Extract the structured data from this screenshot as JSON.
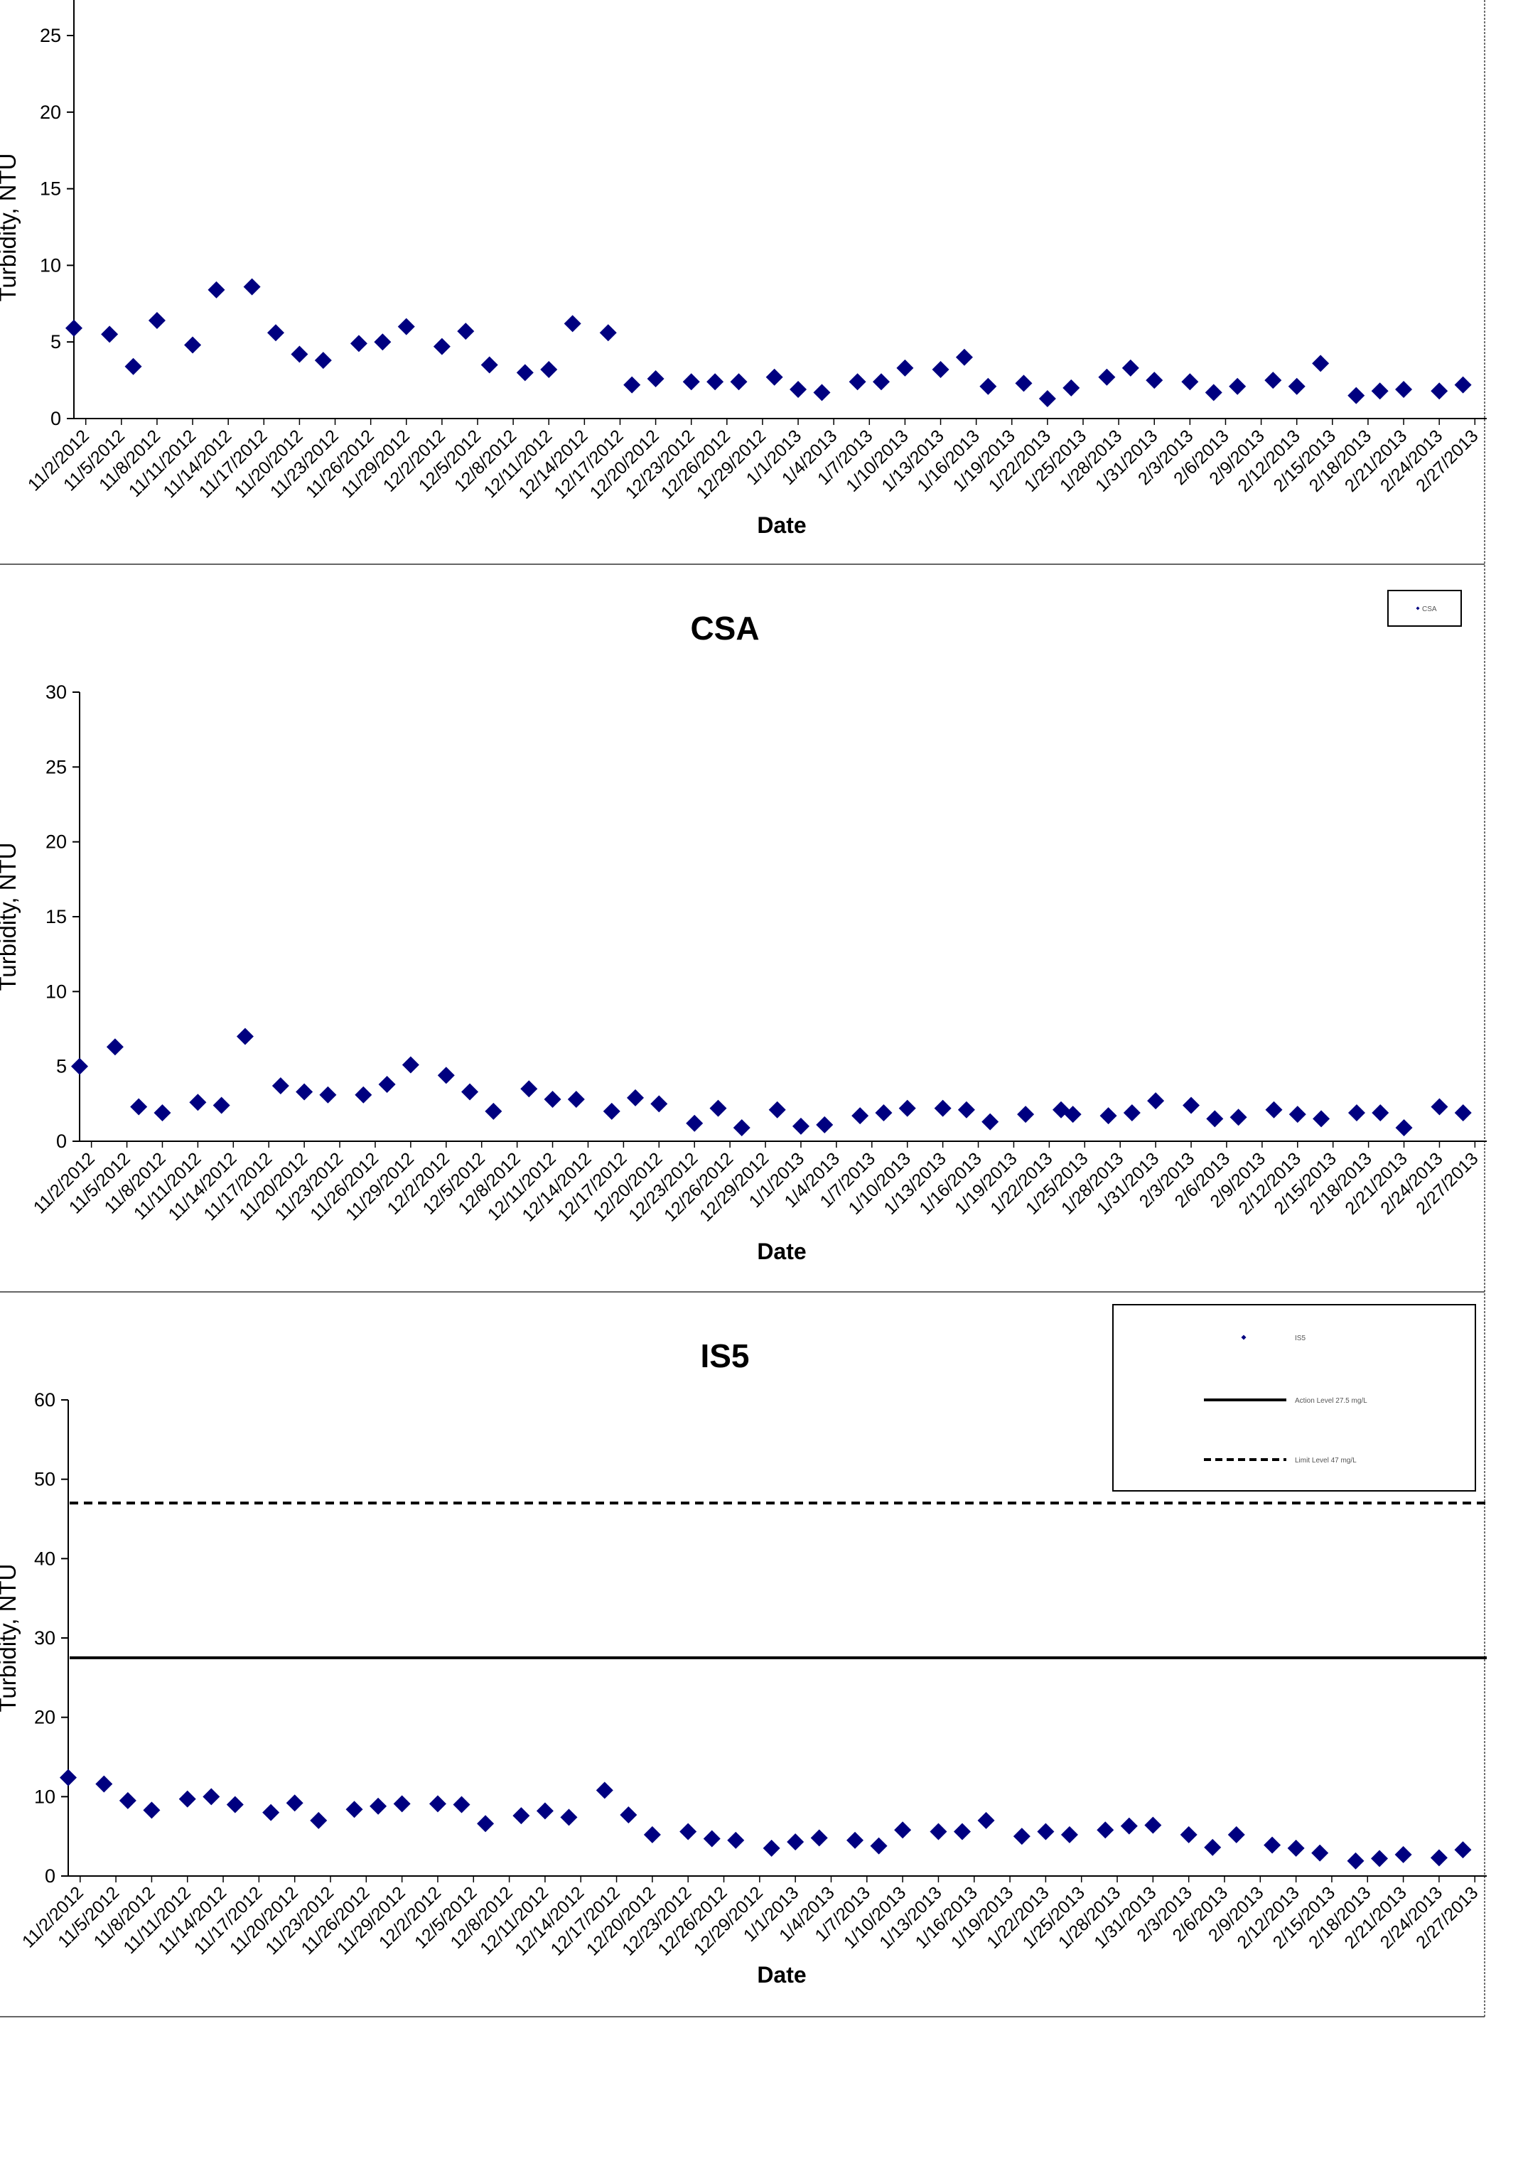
{
  "chart_data": [
    {
      "type": "scatter",
      "title": "",
      "xlabel": "Date",
      "ylabel": "Turbidity, NTU",
      "ylim": [
        0,
        25
      ],
      "yticks": [
        0,
        5,
        10,
        15,
        20,
        25
      ],
      "xlim": [
        "11/1/2012",
        "2/28/2013"
      ],
      "xtick_labels": [
        "11/2/2012",
        "11/5/2012",
        "11/8/2012",
        "11/11/2012",
        "11/14/2012",
        "11/17/2012",
        "11/20/2012",
        "11/23/2012",
        "11/26/2012",
        "11/29/2012",
        "12/2/2012",
        "12/5/2012",
        "12/8/2012",
        "12/11/2012",
        "12/14/2012",
        "12/17/2012",
        "12/20/2012",
        "12/23/2012",
        "12/26/2012",
        "12/29/2012",
        "1/1/2013",
        "1/4/2013",
        "1/7/2013",
        "1/10/2013",
        "1/13/2013",
        "1/16/2013",
        "1/19/2013",
        "1/22/2013",
        "1/25/2013",
        "1/28/2013",
        "1/31/2013",
        "2/3/2013",
        "2/6/2013",
        "2/9/2013",
        "2/12/2013",
        "2/15/2013",
        "2/18/2013",
        "2/21/2013",
        "2/24/2013",
        "2/27/2013"
      ],
      "marker_color": "#000080",
      "series": [
        {
          "name": "",
          "points": [
            [
              "11/1/2012",
              5.9
            ],
            [
              "11/4/2012",
              5.5
            ],
            [
              "11/6/2012",
              3.4
            ],
            [
              "11/8/2012",
              6.4
            ],
            [
              "11/11/2012",
              4.8
            ],
            [
              "11/13/2012",
              8.4
            ],
            [
              "11/16/2012",
              8.6
            ],
            [
              "11/18/2012",
              5.6
            ],
            [
              "11/20/2012",
              4.2
            ],
            [
              "11/22/2012",
              3.8
            ],
            [
              "11/25/2012",
              4.9
            ],
            [
              "11/27/2012",
              5.0
            ],
            [
              "11/29/2012",
              6.0
            ],
            [
              "12/2/2012",
              4.7
            ],
            [
              "12/4/2012",
              5.7
            ],
            [
              "12/6/2012",
              3.5
            ],
            [
              "12/9/2012",
              3.0
            ],
            [
              "12/11/2012",
              3.2
            ],
            [
              "12/13/2012",
              6.2
            ],
            [
              "12/16/2012",
              5.6
            ],
            [
              "12/18/2012",
              2.2
            ],
            [
              "12/20/2012",
              2.6
            ],
            [
              "12/23/2012",
              2.4
            ],
            [
              "12/25/2012",
              2.4
            ],
            [
              "12/27/2012",
              2.4
            ],
            [
              "12/30/2012",
              2.7
            ],
            [
              "1/1/2013",
              1.9
            ],
            [
              "1/3/2013",
              1.7
            ],
            [
              "1/6/2013",
              2.4
            ],
            [
              "1/8/2013",
              2.4
            ],
            [
              "1/10/2013",
              3.3
            ],
            [
              "1/13/2013",
              3.2
            ],
            [
              "1/15/2013",
              4.0
            ],
            [
              "1/17/2013",
              2.1
            ],
            [
              "1/20/2013",
              2.3
            ],
            [
              "1/22/2013",
              1.3
            ],
            [
              "1/24/2013",
              2.0
            ],
            [
              "1/27/2013",
              2.7
            ],
            [
              "1/29/2013",
              3.3
            ],
            [
              "1/31/2013",
              2.5
            ],
            [
              "2/3/2013",
              2.4
            ],
            [
              "2/5/2013",
              1.7
            ],
            [
              "2/7/2013",
              2.1
            ],
            [
              "2/10/2013",
              2.5
            ],
            [
              "2/12/2013",
              2.1
            ],
            [
              "2/14/2013",
              3.6
            ],
            [
              "2/17/2013",
              1.5
            ],
            [
              "2/19/2013",
              1.8
            ],
            [
              "2/21/2013",
              1.9
            ],
            [
              "2/24/2013",
              1.8
            ],
            [
              "2/26/2013",
              2.2
            ]
          ]
        }
      ],
      "reference_lines": [],
      "legend": null
    },
    {
      "type": "scatter",
      "title": "CSA",
      "xlabel": "Date",
      "ylabel": "Turbidity, NTU",
      "ylim": [
        0,
        30
      ],
      "yticks": [
        0,
        5,
        10,
        15,
        20,
        25,
        30
      ],
      "xlim": [
        "11/1/2012",
        "2/28/2013"
      ],
      "xtick_labels": [
        "11/2/2012",
        "11/5/2012",
        "11/8/2012",
        "11/11/2012",
        "11/14/2012",
        "11/17/2012",
        "11/20/2012",
        "11/23/2012",
        "11/26/2012",
        "11/29/2012",
        "12/2/2012",
        "12/5/2012",
        "12/8/2012",
        "12/11/2012",
        "12/14/2012",
        "12/17/2012",
        "12/20/2012",
        "12/23/2012",
        "12/26/2012",
        "12/29/2012",
        "1/1/2013",
        "1/4/2013",
        "1/7/2013",
        "1/10/2013",
        "1/13/2013",
        "1/16/2013",
        "1/19/2013",
        "1/22/2013",
        "1/25/2013",
        "1/28/2013",
        "1/31/2013",
        "2/3/2013",
        "2/6/2013",
        "2/9/2013",
        "2/12/2013",
        "2/15/2013",
        "2/18/2013",
        "2/21/2013",
        "2/24/2013",
        "2/27/2013"
      ],
      "marker_color": "#000080",
      "series": [
        {
          "name": "CSA",
          "points": [
            [
              "11/1/2012",
              5.0
            ],
            [
              "11/4/2012",
              6.3
            ],
            [
              "11/6/2012",
              2.3
            ],
            [
              "11/8/2012",
              1.9
            ],
            [
              "11/11/2012",
              2.6
            ],
            [
              "11/13/2012",
              2.4
            ],
            [
              "11/15/2012",
              7.0
            ],
            [
              "11/18/2012",
              3.7
            ],
            [
              "11/20/2012",
              3.3
            ],
            [
              "11/22/2012",
              3.1
            ],
            [
              "11/25/2012",
              3.1
            ],
            [
              "11/27/2012",
              3.8
            ],
            [
              "11/29/2012",
              5.1
            ],
            [
              "12/2/2012",
              4.4
            ],
            [
              "12/4/2012",
              3.3
            ],
            [
              "12/6/2012",
              2.0
            ],
            [
              "12/9/2012",
              3.5
            ],
            [
              "12/11/2012",
              2.8
            ],
            [
              "12/13/2012",
              2.8
            ],
            [
              "12/16/2012",
              2.0
            ],
            [
              "12/18/2012",
              2.9
            ],
            [
              "12/20/2012",
              2.5
            ],
            [
              "12/23/2012",
              1.2
            ],
            [
              "12/25/2012",
              2.2
            ],
            [
              "12/27/2012",
              0.9
            ],
            [
              "12/30/2012",
              2.1
            ],
            [
              "1/1/2013",
              1.0
            ],
            [
              "1/3/2013",
              1.1
            ],
            [
              "1/6/2013",
              1.7
            ],
            [
              "1/8/2013",
              1.9
            ],
            [
              "1/10/2013",
              2.2
            ],
            [
              "1/13/2013",
              2.2
            ],
            [
              "1/15/2013",
              2.1
            ],
            [
              "1/17/2013",
              1.3
            ],
            [
              "1/20/2013",
              1.8
            ],
            [
              "1/23/2013",
              2.1
            ],
            [
              "1/24/2013",
              1.8
            ],
            [
              "1/27/2013",
              1.7
            ],
            [
              "1/29/2013",
              1.9
            ],
            [
              "1/31/2013",
              2.7
            ],
            [
              "2/3/2013",
              2.4
            ],
            [
              "2/5/2013",
              1.5
            ],
            [
              "2/7/2013",
              1.6
            ],
            [
              "2/10/2013",
              2.1
            ],
            [
              "2/12/2013",
              1.8
            ],
            [
              "2/14/2013",
              1.5
            ],
            [
              "2/17/2013",
              1.9
            ],
            [
              "2/19/2013",
              1.9
            ],
            [
              "2/21/2013",
              0.9
            ],
            [
              "2/24/2013",
              2.3
            ],
            [
              "2/26/2013",
              1.9
            ]
          ]
        }
      ],
      "reference_lines": [],
      "legend": {
        "placement": "top-right",
        "entries": [
          "CSA"
        ]
      }
    },
    {
      "type": "scatter",
      "title": "IS5",
      "xlabel": "Date",
      "ylabel": "Turbidity, NTU",
      "ylim": [
        0,
        60
      ],
      "yticks": [
        0,
        10,
        20,
        30,
        40,
        50,
        60
      ],
      "xlim": [
        "11/1/2012",
        "2/28/2013"
      ],
      "xtick_labels": [
        "11/2/2012",
        "11/5/2012",
        "11/8/2012",
        "11/11/2012",
        "11/14/2012",
        "11/17/2012",
        "11/20/2012",
        "11/23/2012",
        "11/26/2012",
        "11/29/2012",
        "12/2/2012",
        "12/5/2012",
        "12/8/2012",
        "12/11/2012",
        "12/14/2012",
        "12/17/2012",
        "12/20/2012",
        "12/23/2012",
        "12/26/2012",
        "12/29/2012",
        "1/1/2013",
        "1/4/2013",
        "1/7/2013",
        "1/10/2013",
        "1/13/2013",
        "1/16/2013",
        "1/19/2013",
        "1/22/2013",
        "1/25/2013",
        "1/28/2013",
        "1/31/2013",
        "2/3/2013",
        "2/6/2013",
        "2/9/2013",
        "2/12/2013",
        "2/15/2013",
        "2/18/2013",
        "2/21/2013",
        "2/24/2013",
        "2/27/2013"
      ],
      "marker_color": "#000080",
      "series": [
        {
          "name": "IS5",
          "points": [
            [
              "11/1/2012",
              12.4
            ],
            [
              "11/4/2012",
              11.6
            ],
            [
              "11/6/2012",
              9.5
            ],
            [
              "11/8/2012",
              8.3
            ],
            [
              "11/11/2012",
              9.7
            ],
            [
              "11/13/2012",
              10.0
            ],
            [
              "11/15/2012",
              9.0
            ],
            [
              "11/18/2012",
              8.0
            ],
            [
              "11/20/2012",
              9.2
            ],
            [
              "11/22/2012",
              7.0
            ],
            [
              "11/25/2012",
              8.4
            ],
            [
              "11/27/2012",
              8.8
            ],
            [
              "11/29/2012",
              9.1
            ],
            [
              "12/2/2012",
              9.1
            ],
            [
              "12/4/2012",
              9.0
            ],
            [
              "12/6/2012",
              6.6
            ],
            [
              "12/9/2012",
              7.6
            ],
            [
              "12/11/2012",
              8.2
            ],
            [
              "12/13/2012",
              7.4
            ],
            [
              "12/16/2012",
              10.8
            ],
            [
              "12/18/2012",
              7.7
            ],
            [
              "12/20/2012",
              5.2
            ],
            [
              "12/23/2012",
              5.6
            ],
            [
              "12/25/2012",
              4.7
            ],
            [
              "12/27/2012",
              4.5
            ],
            [
              "12/30/2012",
              3.5
            ],
            [
              "1/1/2013",
              4.3
            ],
            [
              "1/3/2013",
              4.8
            ],
            [
              "1/6/2013",
              4.5
            ],
            [
              "1/8/2013",
              3.8
            ],
            [
              "1/10/2013",
              5.8
            ],
            [
              "1/13/2013",
              5.6
            ],
            [
              "1/15/2013",
              5.6
            ],
            [
              "1/17/2013",
              7.0
            ],
            [
              "1/20/2013",
              5.0
            ],
            [
              "1/22/2013",
              5.6
            ],
            [
              "1/24/2013",
              5.2
            ],
            [
              "1/27/2013",
              5.8
            ],
            [
              "1/29/2013",
              6.3
            ],
            [
              "1/31/2013",
              6.4
            ],
            [
              "2/3/2013",
              5.2
            ],
            [
              "2/5/2013",
              3.6
            ],
            [
              "2/7/2013",
              5.2
            ],
            [
              "2/10/2013",
              3.9
            ],
            [
              "2/12/2013",
              3.5
            ],
            [
              "2/14/2013",
              2.9
            ],
            [
              "2/17/2013",
              1.9
            ],
            [
              "2/19/2013",
              2.2
            ],
            [
              "2/21/2013",
              2.7
            ],
            [
              "2/24/2013",
              2.3
            ],
            [
              "2/26/2013",
              3.3
            ]
          ]
        }
      ],
      "reference_lines": [
        {
          "name": "Action Level 27.5 mg/L",
          "value": 27.5,
          "style": "solid",
          "color": "#000000"
        },
        {
          "name": "Limit Level 47 mg/L",
          "value": 47,
          "style": "dashed",
          "color": "#000000"
        }
      ],
      "legend": {
        "placement": "top-right",
        "entries": [
          "IS5",
          "Action Level 27.5 mg/L",
          "Limit Level 47 mg/L"
        ]
      }
    }
  ]
}
